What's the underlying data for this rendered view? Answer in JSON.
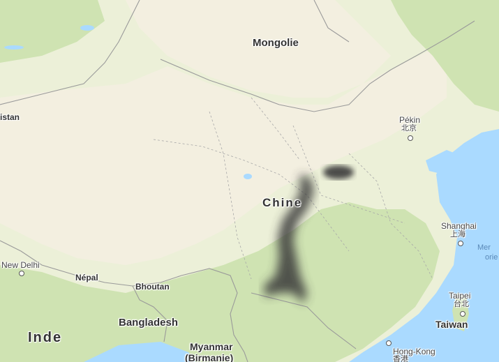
{
  "map": {
    "colors": {
      "sea": "#aadaff",
      "desert": "#f3efe0",
      "steppe": "#ecf0d8",
      "forest": "#cfe3b2",
      "border": "#9a9a9a",
      "heat": "#3a3a3a"
    },
    "labels": {
      "mongolia": "Mongolie",
      "china": "Chine",
      "india": "Inde",
      "nepal": "Népal",
      "bhutan": "Bhoutan",
      "bangladesh": "Bangladesh",
      "myanmar_1": "Myanmar",
      "myanmar_2": "(Birmanie)",
      "taiwan": "Taiwan",
      "pakistan_partial": "istan",
      "beijing": "Pékin",
      "beijing_cjk": "北京",
      "shanghai": "Shanghai",
      "shanghai_cjk": "上海",
      "taipei": "Taipei",
      "taipei_cjk": "台北",
      "new_delhi": "New Delhi",
      "hong_kong": "Hong-Kong",
      "hong_kong_cjk": "香港",
      "sea_1": "Mer",
      "sea_2": "orie"
    }
  }
}
